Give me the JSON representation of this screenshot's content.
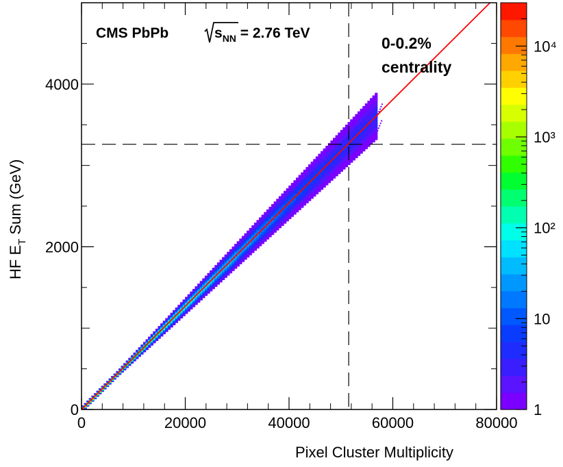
{
  "chart_data": {
    "type": "heatmap",
    "title": "",
    "xlabel": "Pixel Cluster Multiplicity",
    "ylabel_parts": {
      "main": "HF E",
      "sub": "T",
      "rest": " Sum (GeV)"
    },
    "xlim": [
      0,
      80000
    ],
    "ylim": [
      0,
      5000
    ],
    "x_tick_labels": [
      "0",
      "20000",
      "40000",
      "60000",
      "80000"
    ],
    "x_tick_values": [
      0,
      20000,
      40000,
      60000,
      80000
    ],
    "y_tick_labels": [
      "0",
      "2000",
      "4000"
    ],
    "y_tick_values": [
      0,
      2000,
      4000
    ],
    "grid": false,
    "experiment_label": "CMS PbPb",
    "energy_label": {
      "prefix": "s",
      "sub": "NN",
      "value": " = 2.76 TeV"
    },
    "centrality_label": [
      "0-0.2%",
      "centrality"
    ],
    "correlation_band": {
      "x_end": 57000,
      "slope": 0.0635,
      "relative_width": 0.08,
      "peak_density_near_origin": true
    },
    "fit_line": {
      "x": [
        0,
        80000
      ],
      "y": [
        0,
        5080
      ],
      "color": "#ff0000"
    },
    "cut_lines": {
      "x": 51500,
      "y": 3260,
      "style": "dashed"
    },
    "color_scale": {
      "type": "log",
      "min": 1,
      "max": 30000,
      "tick_labels": [
        "1",
        "10",
        "10²",
        "10³",
        "10⁴"
      ],
      "tick_values": [
        1,
        10,
        100,
        1000,
        10000
      ],
      "colors": [
        "#7a00ff",
        "#5a14ff",
        "#3a1eff",
        "#1f2cff",
        "#0a3cff",
        "#0058ff",
        "#0078ff",
        "#0098ff",
        "#00bcff",
        "#00e0ff",
        "#00ffe8",
        "#00ffb0",
        "#00ff70",
        "#00ff30",
        "#30ff00",
        "#70ff00",
        "#a8ff00",
        "#d8ff00",
        "#ffff00",
        "#ffd000",
        "#ffa800",
        "#ff7800",
        "#ff4800",
        "#ff1800"
      ]
    }
  }
}
